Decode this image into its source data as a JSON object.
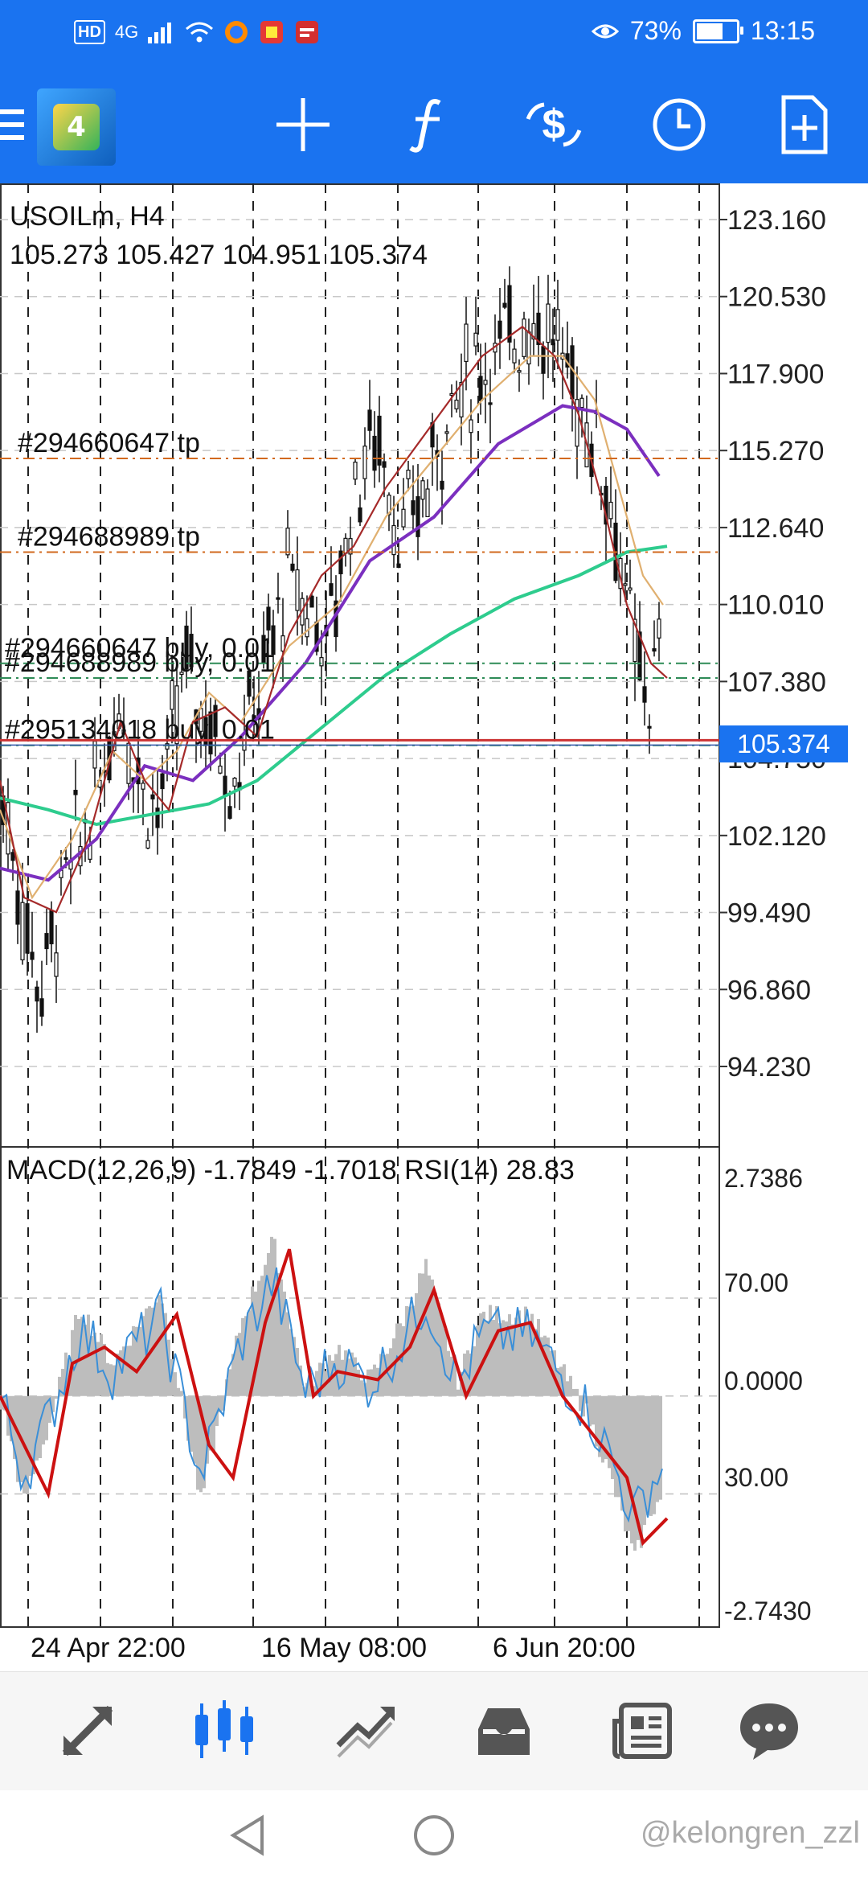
{
  "status_bar": {
    "hd_badge": "HD",
    "network": "4G",
    "battery_percent": "73%",
    "battery_level": 0.73,
    "time": "13:15"
  },
  "toolbar": {
    "logo_glyph": "4",
    "buttons": [
      "crosshair-icon",
      "function-icon",
      "trade-icon",
      "clock-icon",
      "new-document-icon"
    ]
  },
  "chart": {
    "symbol": "USOILm, H4",
    "ohlc": "105.273 105.427 104.951 105.374",
    "current_price": "105.374",
    "price_axis": [
      "123.160",
      "120.530",
      "117.900",
      "115.270",
      "112.640",
      "110.010",
      "107.380",
      "104.750",
      "102.120",
      "99.490",
      "96.860",
      "94.230"
    ],
    "order_lines": [
      {
        "label": "#294660647 tp",
        "price": 115.0
      },
      {
        "label": "#294688989 tp",
        "price": 111.8
      },
      {
        "label": "#294660647 buy, 0.01",
        "price": 108.0
      },
      {
        "label": "#294688989 buy, 0.01",
        "price": 107.5
      },
      {
        "label": "#295134018 buy, 0.01",
        "price": 105.2
      }
    ]
  },
  "indicator": {
    "label": "MACD(12,26,9) -1.7849 -1.7018 RSI(14) 28.83",
    "axis": [
      "2.7386",
      "70.00",
      "0.0000",
      "30.00",
      "-2.7430"
    ]
  },
  "time_axis": [
    "24 Apr 22:00",
    "16 May 08:00",
    "6 Jun 20:00"
  ],
  "bottom_nav": [
    "quotes-icon",
    "chart-icon",
    "trade-icon",
    "history-icon",
    "news-icon",
    "chat-icon"
  ],
  "watermark": "@kelongren_zzl",
  "colors": {
    "accent": "#1a73f0",
    "ma_slow": "#2ecc8e",
    "ma_mid": "#7b2fbf",
    "macd_signal": "#cc1111",
    "rsi": "#3a8fd8",
    "bid_line": "#cc3333"
  }
}
